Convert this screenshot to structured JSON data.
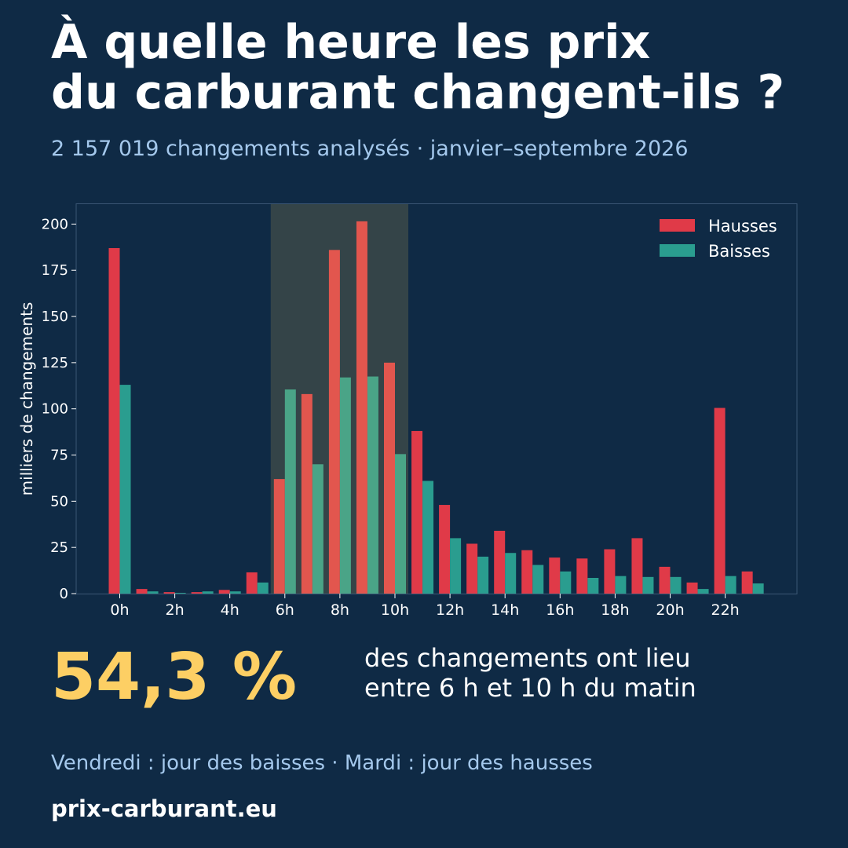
{
  "header": {
    "title_line1": "À quelle heure les prix",
    "title_line2": "du carburant changent-ils ?",
    "subtitle": "2 157 019 changements analysés · janvier–septembre 2026"
  },
  "chart_data": {
    "type": "bar",
    "categories": [
      "0h",
      "1h",
      "2h",
      "3h",
      "4h",
      "5h",
      "6h",
      "7h",
      "8h",
      "9h",
      "10h",
      "11h",
      "12h",
      "13h",
      "14h",
      "15h",
      "16h",
      "17h",
      "18h",
      "19h",
      "20h",
      "21h",
      "22h",
      "23h"
    ],
    "tick_labels": [
      "0h",
      "2h",
      "4h",
      "6h",
      "8h",
      "10h",
      "12h",
      "14h",
      "16h",
      "18h",
      "20h",
      "22h"
    ],
    "series": [
      {
        "name": "Hausses",
        "color": "#e03a48",
        "highlight_color": "#e2564e",
        "values": [
          187,
          2.5,
          0.8,
          0.8,
          2,
          11.5,
          62,
          108,
          186,
          201.5,
          125,
          88,
          48,
          27,
          34,
          23.5,
          19.5,
          19,
          24,
          30,
          14.5,
          6,
          100.5,
          12
        ]
      },
      {
        "name": "Baisses",
        "color": "#2a9d8f",
        "highlight_color": "#4aa487",
        "values": [
          113,
          1.2,
          0.4,
          1.2,
          1.2,
          6,
          110.5,
          70,
          117,
          117.5,
          75.5,
          61,
          30,
          20,
          22,
          15.5,
          12,
          8.5,
          9.5,
          9,
          9,
          2.5,
          9.5,
          5.5
        ]
      }
    ],
    "highlight_range": [
      6,
      10
    ],
    "ylabel": "milliers de changements",
    "ylim": [
      0,
      211
    ],
    "yticks": [
      0,
      25,
      50,
      75,
      100,
      125,
      150,
      175,
      200
    ],
    "grid": false,
    "legend": "top-right",
    "colors": {
      "frame": "#3a5574",
      "highlight_band": "#344448",
      "tick_text": "#ffffff"
    }
  },
  "stat": {
    "value": "54,3 %",
    "line1": "des changements ont lieu",
    "line2": "entre 6 h et 10 h du matin"
  },
  "footnote": "Vendredi : jour des baisses · Mardi : jour des hausses",
  "brand": "prix-carburant.eu"
}
